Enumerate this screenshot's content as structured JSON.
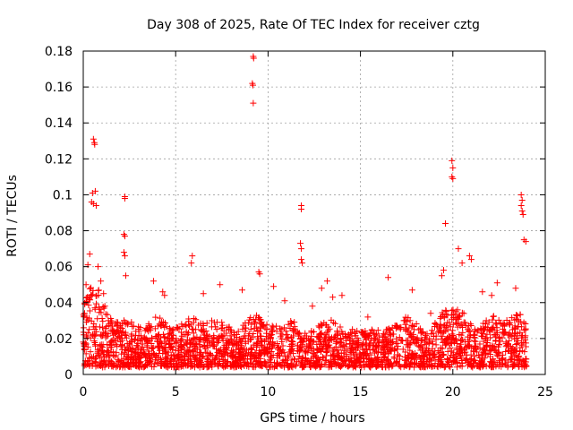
{
  "chart_data": {
    "type": "scatter",
    "title": "Day 308 of 2025, Rate Of TEC Index for receiver cztg",
    "xlabel": "GPS time / hours",
    "ylabel": "ROTI / TECUs",
    "xlim": [
      0,
      25
    ],
    "ylim": [
      0,
      0.18
    ],
    "x_ticks": [
      "0",
      "5",
      "10",
      "15",
      "20",
      "25"
    ],
    "y_ticks": [
      "0",
      "0.02",
      "0.04",
      "0.06",
      "0.08",
      "0.1",
      "0.12",
      "0.14",
      "0.16",
      "0.18"
    ],
    "grid": true,
    "marker": "+",
    "series": [
      {
        "name": "ROTI",
        "color": "#ff0000",
        "outliers": [
          {
            "x": 0.55,
            "y": 0.131
          },
          {
            "x": 0.6,
            "y": 0.129
          },
          {
            "x": 0.62,
            "y": 0.128
          },
          {
            "x": 0.5,
            "y": 0.101
          },
          {
            "x": 0.65,
            "y": 0.102
          },
          {
            "x": 0.55,
            "y": 0.095
          },
          {
            "x": 0.7,
            "y": 0.094
          },
          {
            "x": 0.45,
            "y": 0.096
          },
          {
            "x": 2.25,
            "y": 0.099
          },
          {
            "x": 2.25,
            "y": 0.098
          },
          {
            "x": 2.2,
            "y": 0.078
          },
          {
            "x": 2.25,
            "y": 0.077
          },
          {
            "x": 2.2,
            "y": 0.068
          },
          {
            "x": 2.25,
            "y": 0.066
          },
          {
            "x": 2.3,
            "y": 0.055
          },
          {
            "x": 9.2,
            "y": 0.177
          },
          {
            "x": 9.22,
            "y": 0.176
          },
          {
            "x": 9.15,
            "y": 0.162
          },
          {
            "x": 9.18,
            "y": 0.161
          },
          {
            "x": 9.2,
            "y": 0.151
          },
          {
            "x": 11.8,
            "y": 0.094
          },
          {
            "x": 11.8,
            "y": 0.092
          },
          {
            "x": 11.75,
            "y": 0.073
          },
          {
            "x": 11.8,
            "y": 0.07
          },
          {
            "x": 11.8,
            "y": 0.064
          },
          {
            "x": 11.85,
            "y": 0.062
          },
          {
            "x": 19.95,
            "y": 0.119
          },
          {
            "x": 20.0,
            "y": 0.115
          },
          {
            "x": 19.95,
            "y": 0.11
          },
          {
            "x": 20.0,
            "y": 0.109
          },
          {
            "x": 19.6,
            "y": 0.084
          },
          {
            "x": 23.7,
            "y": 0.1
          },
          {
            "x": 23.75,
            "y": 0.097
          },
          {
            "x": 23.7,
            "y": 0.094
          },
          {
            "x": 23.75,
            "y": 0.091
          },
          {
            "x": 23.8,
            "y": 0.089
          },
          {
            "x": 23.85,
            "y": 0.075
          },
          {
            "x": 23.95,
            "y": 0.074
          },
          {
            "x": 5.9,
            "y": 0.066
          },
          {
            "x": 5.85,
            "y": 0.062
          },
          {
            "x": 9.5,
            "y": 0.057
          },
          {
            "x": 9.55,
            "y": 0.056
          },
          {
            "x": 16.5,
            "y": 0.054
          },
          {
            "x": 14.0,
            "y": 0.044
          },
          {
            "x": 13.2,
            "y": 0.052
          },
          {
            "x": 4.3,
            "y": 0.046
          },
          {
            "x": 4.4,
            "y": 0.044
          },
          {
            "x": 3.8,
            "y": 0.052
          },
          {
            "x": 7.4,
            "y": 0.05
          },
          {
            "x": 8.6,
            "y": 0.047
          },
          {
            "x": 17.8,
            "y": 0.047
          },
          {
            "x": 22.4,
            "y": 0.051
          },
          {
            "x": 20.9,
            "y": 0.066
          },
          {
            "x": 21.0,
            "y": 0.064
          },
          {
            "x": 20.5,
            "y": 0.062
          },
          {
            "x": 20.3,
            "y": 0.07
          },
          {
            "x": 19.4,
            "y": 0.055
          },
          {
            "x": 19.5,
            "y": 0.058
          },
          {
            "x": 12.9,
            "y": 0.048
          },
          {
            "x": 13.5,
            "y": 0.043
          },
          {
            "x": 0.35,
            "y": 0.067
          },
          {
            "x": 0.25,
            "y": 0.061
          },
          {
            "x": 0.15,
            "y": 0.05
          },
          {
            "x": 0.8,
            "y": 0.06
          },
          {
            "x": 0.95,
            "y": 0.052
          },
          {
            "x": 1.1,
            "y": 0.045
          },
          {
            "x": 6.5,
            "y": 0.045
          },
          {
            "x": 10.9,
            "y": 0.041
          },
          {
            "x": 10.3,
            "y": 0.049
          },
          {
            "x": 12.4,
            "y": 0.038
          },
          {
            "x": 15.4,
            "y": 0.032
          },
          {
            "x": 18.8,
            "y": 0.034
          },
          {
            "x": 21.6,
            "y": 0.046
          },
          {
            "x": 22.1,
            "y": 0.044
          },
          {
            "x": 23.4,
            "y": 0.048
          }
        ],
        "band": {
          "description_values": "dense baseline ROTI values across the day",
          "x_range": [
            0,
            24
          ],
          "typical_min": 0.004,
          "typical_max": 0.025
        }
      }
    ]
  }
}
